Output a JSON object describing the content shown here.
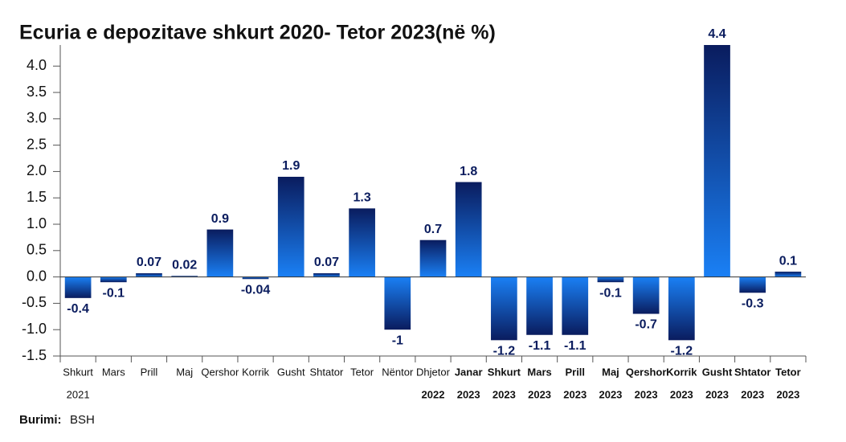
{
  "chart_data": {
    "type": "bar",
    "title": "Ecuria e depozitave shkurt 2020- Tetor 2023(në %)",
    "categories": [
      "Shkurt",
      "Mars",
      "Prill",
      "Maj",
      "Qershor",
      "Korrik",
      "Gusht",
      "Shtator",
      "Tetor",
      "Nëntor",
      "Dhjetor",
      "Janar",
      "Shkurt",
      "Mars",
      "Prill",
      "Maj",
      "Qershor",
      "Korrik",
      "Gusht",
      "Shtator",
      "Tetor"
    ],
    "category_years": [
      "2021",
      null,
      null,
      null,
      null,
      null,
      null,
      null,
      null,
      null,
      "2022",
      "2023",
      "2023",
      "2023",
      "2023",
      "2023",
      "2023",
      "2023",
      "2023",
      "2023",
      "2023"
    ],
    "values": [
      -0.4,
      -0.1,
      0.07,
      0.02,
      0.9,
      -0.04,
      1.9,
      0.07,
      1.3,
      -1,
      0.7,
      1.8,
      -1.2,
      -1.1,
      -1.1,
      -0.1,
      -0.7,
      -1.2,
      4.4,
      -0.3,
      0.1
    ],
    "colors": [
      "#0a1c5e",
      "#1a80f5"
    ],
    "ylim": [
      -1.5,
      4.4
    ],
    "yticks": [
      {
        "value": -1.5,
        "label": "-1.5"
      },
      {
        "value": -1,
        "label": "-1.0"
      },
      -0.5,
      {
        "value": 0,
        "label": "0.0"
      },
      0.5,
      {
        "value": 1,
        "label": "1.0"
      },
      1.5,
      {
        "value": 2,
        "label": "2.0"
      },
      2.5,
      {
        "value": 3,
        "label": "3.0"
      },
      3.5,
      {
        "value": 4,
        "label": "4.0"
      }
    ],
    "source_label": "Burimi:",
    "source": "BSH"
  }
}
